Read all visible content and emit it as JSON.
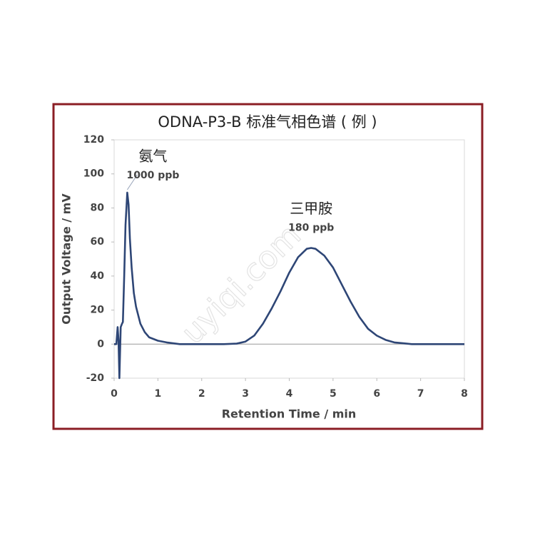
{
  "chart_data": {
    "type": "line",
    "title": "ODNA-P3-B 标准气相色谱 ( 例 )",
    "x_label": "Retention Time / min",
    "y_label": "Output Voltage / mV",
    "x": [
      0,
      0.05,
      0.08,
      0.1,
      0.12,
      0.15,
      0.18,
      0.2,
      0.23,
      0.26,
      0.3,
      0.33,
      0.36,
      0.4,
      0.45,
      0.5,
      0.6,
      0.7,
      0.8,
      1.0,
      1.2,
      1.5,
      2.0,
      2.5,
      2.8,
      3.0,
      3.2,
      3.4,
      3.6,
      3.8,
      4.0,
      4.2,
      4.4,
      4.5,
      4.6,
      4.8,
      5.0,
      5.2,
      5.4,
      5.6,
      5.8,
      6.0,
      6.2,
      6.4,
      6.6,
      6.8,
      7.0,
      7.5,
      8.0
    ],
    "values": [
      0,
      0,
      10,
      2,
      -20,
      10,
      12,
      13,
      40,
      70,
      89,
      82,
      62,
      45,
      30,
      22,
      12,
      7,
      4,
      2,
      1,
      0,
      0,
      0,
      0.3,
      1.5,
      5,
      12,
      21,
      31,
      42,
      51,
      56,
      56.5,
      56,
      52,
      45,
      35,
      25,
      16,
      9,
      5,
      2.5,
      1,
      0.5,
      0,
      0,
      0,
      0
    ],
    "color": "#2e4676",
    "xlim": [
      0,
      8
    ],
    "xticks": [
      0,
      1,
      2,
      3,
      4,
      5,
      6,
      7,
      8
    ],
    "ylim": [
      -20,
      120
    ],
    "yticks": [
      -20,
      0,
      20,
      40,
      60,
      80,
      100,
      120
    ],
    "annotations": [
      {
        "name": "氨气",
        "label": "1000 ppb",
        "x": 0.3,
        "y": 89
      },
      {
        "name": "三甲胺",
        "label": "180 ppb",
        "x": 4.5,
        "y": 56.5
      }
    ],
    "watermark": "uyiqi.com"
  }
}
